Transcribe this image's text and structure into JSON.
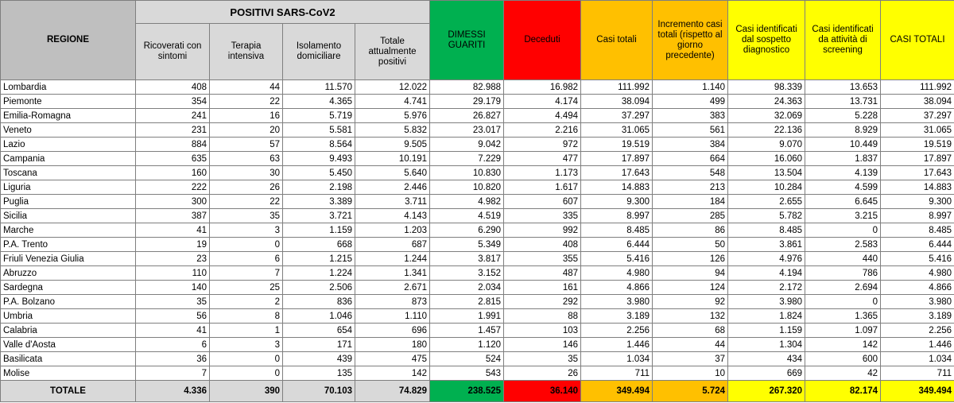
{
  "header": {
    "group": "POSITIVI SARS-CoV2",
    "columns": [
      "REGIONE",
      "Ricoverati con sintomi",
      "Terapia intensiva",
      "Isolamento domiciliare",
      "Totale attualmente positivi",
      "DIMESSI GUARITI",
      "Deceduti",
      "Casi totali",
      "Incremento casi totali (rispetto al giorno precedente)",
      "Casi identificati dal sospetto diagnostico",
      "Casi identificati da attività di screening",
      "CASI TOTALI"
    ]
  },
  "table": {
    "rows": [
      [
        "Lombardia",
        "408",
        "44",
        "11.570",
        "12.022",
        "82.988",
        "16.982",
        "111.992",
        "1.140",
        "98.339",
        "13.653",
        "111.992"
      ],
      [
        "Piemonte",
        "354",
        "22",
        "4.365",
        "4.741",
        "29.179",
        "4.174",
        "38.094",
        "499",
        "24.363",
        "13.731",
        "38.094"
      ],
      [
        "Emilia-Romagna",
        "241",
        "16",
        "5.719",
        "5.976",
        "26.827",
        "4.494",
        "37.297",
        "383",
        "32.069",
        "5.228",
        "37.297"
      ],
      [
        "Veneto",
        "231",
        "20",
        "5.581",
        "5.832",
        "23.017",
        "2.216",
        "31.065",
        "561",
        "22.136",
        "8.929",
        "31.065"
      ],
      [
        "Lazio",
        "884",
        "57",
        "8.564",
        "9.505",
        "9.042",
        "972",
        "19.519",
        "384",
        "9.070",
        "10.449",
        "19.519"
      ],
      [
        "Campania",
        "635",
        "63",
        "9.493",
        "10.191",
        "7.229",
        "477",
        "17.897",
        "664",
        "16.060",
        "1.837",
        "17.897"
      ],
      [
        "Toscana",
        "160",
        "30",
        "5.450",
        "5.640",
        "10.830",
        "1.173",
        "17.643",
        "548",
        "13.504",
        "4.139",
        "17.643"
      ],
      [
        "Liguria",
        "222",
        "26",
        "2.198",
        "2.446",
        "10.820",
        "1.617",
        "14.883",
        "213",
        "10.284",
        "4.599",
        "14.883"
      ],
      [
        "Puglia",
        "300",
        "22",
        "3.389",
        "3.711",
        "4.982",
        "607",
        "9.300",
        "184",
        "2.655",
        "6.645",
        "9.300"
      ],
      [
        "Sicilia",
        "387",
        "35",
        "3.721",
        "4.143",
        "4.519",
        "335",
        "8.997",
        "285",
        "5.782",
        "3.215",
        "8.997"
      ],
      [
        "Marche",
        "41",
        "3",
        "1.159",
        "1.203",
        "6.290",
        "992",
        "8.485",
        "86",
        "8.485",
        "0",
        "8.485"
      ],
      [
        "P.A. Trento",
        "19",
        "0",
        "668",
        "687",
        "5.349",
        "408",
        "6.444",
        "50",
        "3.861",
        "2.583",
        "6.444"
      ],
      [
        "Friuli Venezia Giulia",
        "23",
        "6",
        "1.215",
        "1.244",
        "3.817",
        "355",
        "5.416",
        "126",
        "4.976",
        "440",
        "5.416"
      ],
      [
        "Abruzzo",
        "110",
        "7",
        "1.224",
        "1.341",
        "3.152",
        "487",
        "4.980",
        "94",
        "4.194",
        "786",
        "4.980"
      ],
      [
        "Sardegna",
        "140",
        "25",
        "2.506",
        "2.671",
        "2.034",
        "161",
        "4.866",
        "124",
        "2.172",
        "2.694",
        "4.866"
      ],
      [
        "P.A. Bolzano",
        "35",
        "2",
        "836",
        "873",
        "2.815",
        "292",
        "3.980",
        "92",
        "3.980",
        "0",
        "3.980"
      ],
      [
        "Umbria",
        "56",
        "8",
        "1.046",
        "1.110",
        "1.991",
        "88",
        "3.189",
        "132",
        "1.824",
        "1.365",
        "3.189"
      ],
      [
        "Calabria",
        "41",
        "1",
        "654",
        "696",
        "1.457",
        "103",
        "2.256",
        "68",
        "1.159",
        "1.097",
        "2.256"
      ],
      [
        "Valle d'Aosta",
        "6",
        "3",
        "171",
        "180",
        "1.120",
        "146",
        "1.446",
        "44",
        "1.304",
        "142",
        "1.446"
      ],
      [
        "Basilicata",
        "36",
        "0",
        "439",
        "475",
        "524",
        "35",
        "1.034",
        "37",
        "434",
        "600",
        "1.034"
      ],
      [
        "Molise",
        "7",
        "0",
        "135",
        "142",
        "543",
        "26",
        "711",
        "10",
        "669",
        "42",
        "711"
      ]
    ],
    "total": [
      "TOTALE",
      "4.336",
      "390",
      "70.103",
      "74.829",
      "238.525",
      "36.140",
      "349.494",
      "5.724",
      "267.320",
      "82.174",
      "349.494"
    ]
  }
}
